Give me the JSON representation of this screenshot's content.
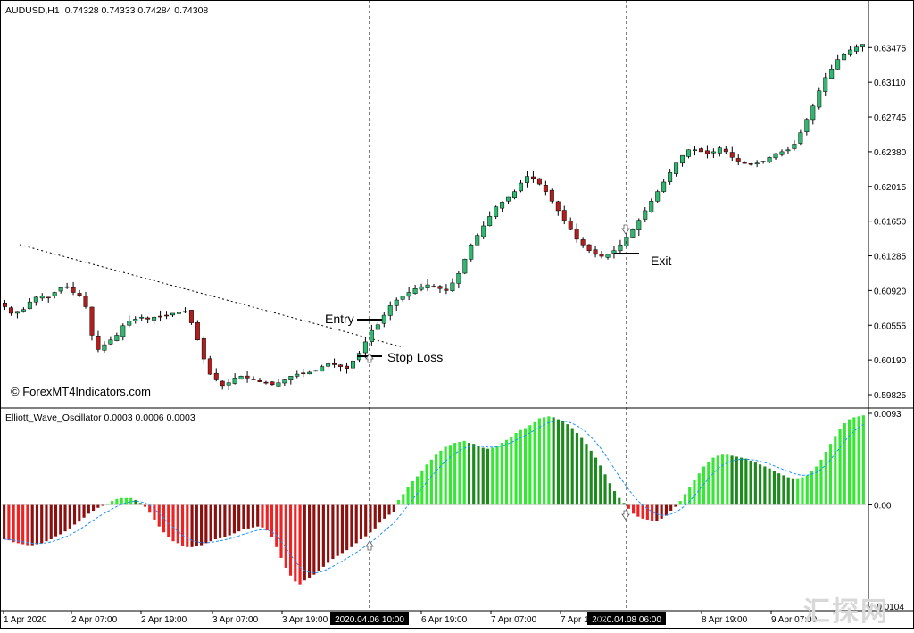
{
  "window": {
    "title": "AUDUSD,H1",
    "ohlc_text": "0.74328 0.74333 0.74284 0.74308",
    "watermark_text": "© ForexMT4Indicators.com",
    "corner_logo": "汇探网"
  },
  "price_axis_labels": [
    "0.63475",
    "0.63110",
    "0.62745",
    "0.62380",
    "0.62015",
    "0.61650",
    "0.61285",
    "0.60920",
    "0.60555",
    "0.60190",
    "0.59825"
  ],
  "oscillator": {
    "title": "Elliott_Wave_Oscillator 0.0003 0.0006 0.0003",
    "axis_labels": [
      "0.0093",
      "0.00",
      "-0.0104"
    ]
  },
  "time_axis_labels": [
    "1 Apr 2020",
    "2 Apr 07:00",
    "2 Apr 19:00",
    "3 Apr 07:00",
    "3 Apr 19:00",
    "6 Apr 19:00",
    "7 Apr 07:00",
    "7 Apr 19:00",
    "8 Apr 19:00",
    "9 Apr 07:00"
  ],
  "time_highlights": [
    "2020.04.06 10:00",
    "2020.04.08 06:00"
  ],
  "annotations": {
    "entry": "Entry",
    "stop_loss": "Stop Loss",
    "exit": "Exit"
  },
  "colors": {
    "bull": "#2fb86f",
    "bear": "#b01e1e",
    "osc_bright_green": "#34e834",
    "osc_dark_green": "#1d8a1d",
    "osc_bright_red": "#ee2222",
    "osc_dark_red": "#8c1010",
    "signal_line": "#1e90ff"
  },
  "chart_data": [
    {
      "type": "candlestick",
      "symbol": "AUDUSD",
      "timeframe": "H1",
      "ylim": [
        0.5975,
        0.6375
      ],
      "title": "",
      "close_path": [
        0.6075,
        0.6068,
        0.607,
        0.6072,
        0.608,
        0.6085,
        0.6086,
        0.6085,
        0.609,
        0.6095,
        0.6096,
        0.609,
        0.6087,
        0.6075,
        0.6045,
        0.603,
        0.6035,
        0.604,
        0.6045,
        0.6055,
        0.606,
        0.6062,
        0.6064,
        0.6062,
        0.6064,
        0.6065,
        0.6066,
        0.6068,
        0.6069,
        0.607,
        0.6058,
        0.604,
        0.602,
        0.6004,
        0.5998,
        0.5992,
        0.5995,
        0.6,
        0.6002,
        0.6,
        0.5998,
        0.5996,
        0.5995,
        0.5993,
        0.5995,
        0.5998,
        0.6002,
        0.6004,
        0.6005,
        0.6006,
        0.6008,
        0.6012,
        0.6015,
        0.6014,
        0.6012,
        0.601,
        0.6018,
        0.6026,
        0.6038,
        0.605,
        0.6056,
        0.6066,
        0.6076,
        0.6082,
        0.6086,
        0.609,
        0.6094,
        0.6096,
        0.6098,
        0.6096,
        0.6094,
        0.6092,
        0.61,
        0.611,
        0.6125,
        0.614,
        0.615,
        0.616,
        0.617,
        0.618,
        0.6185,
        0.619,
        0.6196,
        0.6205,
        0.6212,
        0.621,
        0.6204,
        0.6196,
        0.6186,
        0.6176,
        0.6166,
        0.6156,
        0.6146,
        0.614,
        0.6134,
        0.613,
        0.6128,
        0.613,
        0.6134,
        0.614,
        0.6148,
        0.6156,
        0.6166,
        0.6176,
        0.6186,
        0.6196,
        0.6206,
        0.6216,
        0.6226,
        0.6234,
        0.624,
        0.624,
        0.6238,
        0.6236,
        0.6238,
        0.6242,
        0.6238,
        0.6232,
        0.6228,
        0.6226,
        0.6225,
        0.6226,
        0.6228,
        0.6232,
        0.6236,
        0.6238,
        0.624,
        0.6246,
        0.6258,
        0.6272,
        0.6286,
        0.6302,
        0.6316,
        0.6325,
        0.6335,
        0.634,
        0.6345,
        0.6348,
        0.6351
      ]
    },
    {
      "type": "bar",
      "name": "Elliott_Wave_Oscillator",
      "ylim": [
        -0.0104,
        0.0093
      ],
      "values": [
        -0.0035,
        -0.0036,
        -0.0038,
        -0.0039,
        -0.004,
        -0.0041,
        -0.0041,
        -0.004,
        -0.0039,
        -0.0037,
        -0.0035,
        -0.0032,
        -0.003,
        -0.0027,
        -0.0024,
        -0.002,
        -0.0017,
        -0.0013,
        -0.0009,
        -0.0006,
        -0.0003,
        -0.0001,
        0.0001,
        0.0004,
        0.0006,
        0.0007,
        0.0007,
        0.0007,
        0.0005,
        0.0002,
        -0.0002,
        -0.0008,
        -0.0015,
        -0.0022,
        -0.0028,
        -0.0033,
        -0.0037,
        -0.0039,
        -0.0042,
        -0.0043,
        -0.0043,
        -0.0042,
        -0.0041,
        -0.0039,
        -0.0037,
        -0.0035,
        -0.0034,
        -0.0033,
        -0.0031,
        -0.0029,
        -0.0027,
        -0.0025,
        -0.0024,
        -0.0023,
        -0.0022,
        -0.0023,
        -0.0026,
        -0.0033,
        -0.0043,
        -0.0054,
        -0.0064,
        -0.0072,
        -0.0078,
        -0.0081,
        -0.0077,
        -0.0074,
        -0.0071,
        -0.0067,
        -0.0063,
        -0.0059,
        -0.0055,
        -0.0052,
        -0.0049,
        -0.0046,
        -0.0043,
        -0.0039,
        -0.0035,
        -0.0032,
        -0.0028,
        -0.0024,
        -0.0018,
        -0.0014,
        -0.001,
        -0.0007,
        0.0005,
        0.0011,
        0.0018,
        0.0024,
        0.0029,
        0.0035,
        0.0041,
        0.0046,
        0.0051,
        0.0055,
        0.0059,
        0.0061,
        0.0063,
        0.0064,
        0.0065,
        0.0063,
        0.0062,
        0.006,
        0.0058,
        0.0057,
        0.0058,
        0.006,
        0.0063,
        0.0066,
        0.0069,
        0.0073,
        0.0076,
        0.0078,
        0.0081,
        0.0084,
        0.0088,
        0.0089,
        0.009,
        0.0089,
        0.0087,
        0.0085,
        0.0082,
        0.0078,
        0.0073,
        0.0068,
        0.0062,
        0.0055,
        0.0048,
        0.004,
        0.0031,
        0.0022,
        0.0014,
        0.0007,
        0.0002,
        -0.0004,
        -0.0009,
        -0.0012,
        -0.0014,
        -0.0015,
        -0.0016,
        -0.0016,
        -0.0014,
        -0.0011,
        -0.0006,
        -0.0002,
        0.0004,
        0.0011,
        0.0018,
        0.0025,
        0.0032,
        0.0039,
        0.0044,
        0.0048,
        0.005,
        0.0051,
        0.0051,
        0.005,
        0.0049,
        0.0048,
        0.0047,
        0.0045,
        0.0043,
        0.0041,
        0.0039,
        0.0037,
        0.0034,
        0.0032,
        0.003,
        0.0028,
        0.0027,
        0.0027,
        0.0028,
        0.003,
        0.0034,
        0.0039,
        0.0046,
        0.0054,
        0.0062,
        0.007,
        0.0077,
        0.0083,
        0.0087,
        0.0089,
        0.009,
        0.0091
      ]
    }
  ]
}
